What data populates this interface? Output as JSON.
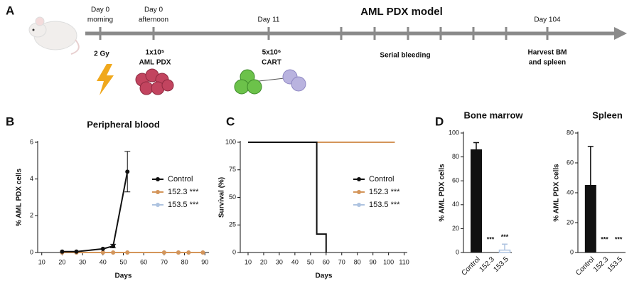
{
  "panel_labels": [
    "A",
    "B",
    "C",
    "D"
  ],
  "timeline": {
    "title": "AML PDX model",
    "top_labels": [
      [
        "Day 0",
        "morning"
      ],
      [
        "Day 0",
        "afternoon"
      ],
      [
        "Day 11"
      ],
      [
        "Day 104"
      ]
    ],
    "bottom_labels": [
      [
        "2 Gy"
      ],
      [
        "1x10⁵",
        "AML PDX"
      ],
      [
        "5x10⁶",
        "CART"
      ],
      [
        "Serial bleeding"
      ],
      [
        "Harvest BM",
        "and spleen"
      ]
    ]
  },
  "chart_data": [
    {
      "type": "line",
      "title": "Peripheral blood",
      "xlabel": "Days",
      "ylabel": "% AML PDX cells",
      "xlim": [
        8,
        92
      ],
      "xticks": [
        10,
        20,
        30,
        40,
        50,
        60,
        70,
        80,
        90
      ],
      "ylim": [
        0,
        6
      ],
      "yticks": [
        0,
        2,
        4,
        6
      ],
      "legend": "right",
      "markers": true,
      "series": [
        {
          "name": "Control",
          "color": "#111111",
          "x": [
            20,
            27,
            40,
            45,
            52
          ],
          "values": [
            0.05,
            0.05,
            0.2,
            0.35,
            4.4
          ],
          "errors": [
            null,
            null,
            null,
            0.1,
            1.1
          ]
        },
        {
          "name": "152.3 ***",
          "color": "#d4955a",
          "x": [
            20,
            27,
            40,
            45,
            52,
            70,
            77,
            82,
            89
          ],
          "values": [
            0,
            0,
            0,
            0,
            0,
            0,
            0,
            0,
            0
          ]
        },
        {
          "name": "153.5 ***",
          "color": "#aec3e0",
          "x": [
            20,
            27,
            40,
            45,
            52,
            70,
            77,
            82,
            89
          ],
          "values": [
            0,
            0,
            0,
            0,
            0,
            0,
            0,
            0,
            0
          ]
        }
      ]
    },
    {
      "type": "line",
      "xlabel": "Days",
      "ylabel": "Survival (%)",
      "xlim": [
        5,
        112
      ],
      "xticks": [
        10,
        20,
        30,
        40,
        50,
        60,
        70,
        80,
        90,
        100,
        110
      ],
      "ylim": [
        0,
        100
      ],
      "yticks": [
        0,
        25,
        50,
        75,
        100
      ],
      "legend": "right",
      "markers": false,
      "series": [
        {
          "name": "Control",
          "color": "#111111",
          "x": [
            10,
            54,
            54,
            60,
            60
          ],
          "values": [
            100,
            100,
            16.7,
            16.7,
            0
          ]
        },
        {
          "name": "152.3 ***",
          "color": "#d4955a",
          "x": [
            10,
            104
          ],
          "values": [
            100,
            100
          ]
        },
        {
          "name": "153.5 ***",
          "color": "#aec3e0",
          "x": [
            10,
            104
          ],
          "values": [
            100,
            100
          ]
        }
      ]
    },
    {
      "type": "bar",
      "title": "Bone marrow",
      "ylabel": "% AML PDX cells",
      "categories": [
        "Control",
        "152.3",
        "153.5"
      ],
      "values": [
        86,
        0,
        2
      ],
      "errors": [
        6,
        null,
        5
      ],
      "annotations": [
        null,
        "***",
        "***"
      ],
      "colors": [
        "#111111",
        "#d4955a",
        "#aec3e0"
      ],
      "ylim": [
        0,
        100
      ],
      "yticks": [
        0,
        20,
        40,
        60,
        80,
        100
      ]
    },
    {
      "type": "bar",
      "title": "Spleen",
      "ylabel": "% AML PDX cells",
      "categories": [
        "Control",
        "152.3",
        "153.5"
      ],
      "values": [
        45,
        0,
        0
      ],
      "errors": [
        26,
        null,
        null
      ],
      "annotations": [
        null,
        "***",
        "***"
      ],
      "colors": [
        "#111111",
        "#d4955a",
        "#aec3e0"
      ],
      "ylim": [
        0,
        80
      ],
      "yticks": [
        0,
        20,
        40,
        60,
        80
      ]
    }
  ]
}
